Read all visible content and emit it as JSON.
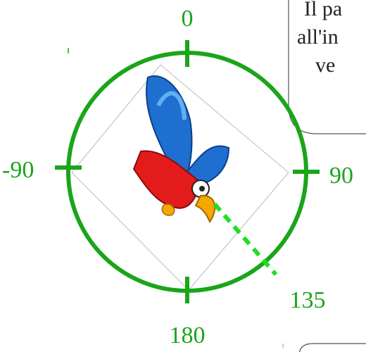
{
  "labels": {
    "top": "0",
    "right": "90",
    "left": "-90",
    "bottom": "180",
    "pointer": "135"
  },
  "bubble": {
    "lines": [
      "Il pa",
      "all'in",
      "ve"
    ]
  }
}
